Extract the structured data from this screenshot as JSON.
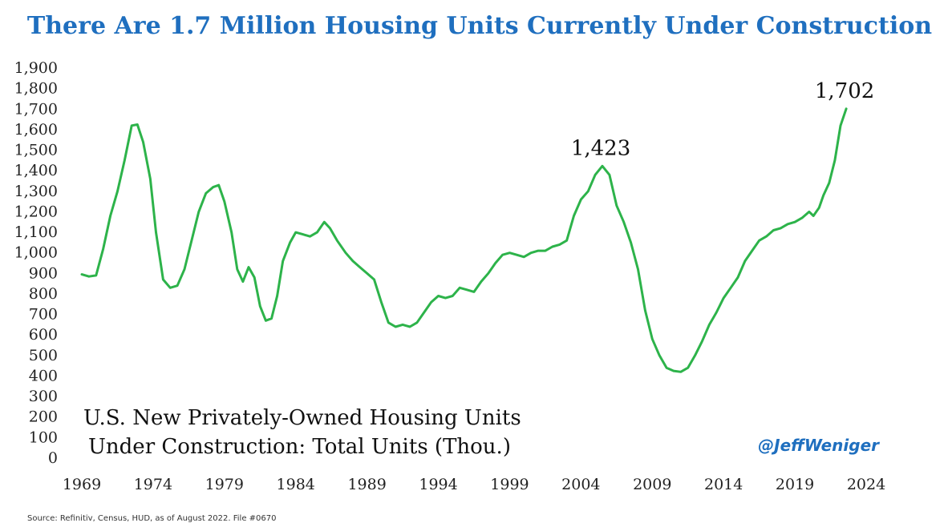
{
  "chart_data": {
    "type": "line",
    "title": "There Are 1.7 Million Housing Units Currently Under Construction",
    "inset_label_lines": [
      "U.S. New Privately-Owned Housing Units",
      "Under Construction: Total Units (Thou.)"
    ],
    "handle": "@JeffWeniger",
    "source": "Source: Refinitiv, Census, HUD, as of August 2022. File #0670",
    "xlim": [
      1969,
      2024
    ],
    "ylim": [
      0,
      1900
    ],
    "x_ticks": [
      1969,
      1974,
      1979,
      1984,
      1989,
      1994,
      1999,
      2004,
      2009,
      2014,
      2019,
      2024
    ],
    "x_tick_labels": [
      "1969",
      "1974",
      "1979",
      "1984",
      "1989",
      "1994",
      "1999",
      "2004",
      "2009",
      "2014",
      "2019",
      "2024"
    ],
    "y_ticks": [
      0,
      100,
      200,
      300,
      400,
      500,
      600,
      700,
      800,
      900,
      1000,
      1100,
      1200,
      1300,
      1400,
      1500,
      1600,
      1700,
      1800,
      1900
    ],
    "y_tick_labels": [
      "0",
      "100",
      "200",
      "300",
      "400",
      "500",
      "600",
      "700",
      "800",
      "900",
      "1,000",
      "1,100",
      "1,200",
      "1,300",
      "1,400",
      "1,500",
      "1,600",
      "1,700",
      "1,800",
      "1,900"
    ],
    "series": [
      {
        "name": "Housing Units Under Construction",
        "color": "#2db34a",
        "points": [
          [
            1969.0,
            895
          ],
          [
            1969.5,
            885
          ],
          [
            1970.0,
            890
          ],
          [
            1970.5,
            1020
          ],
          [
            1971.0,
            1180
          ],
          [
            1971.5,
            1300
          ],
          [
            1972.0,
            1450
          ],
          [
            1972.5,
            1620
          ],
          [
            1972.9,
            1625
          ],
          [
            1973.3,
            1540
          ],
          [
            1973.8,
            1360
          ],
          [
            1974.2,
            1100
          ],
          [
            1974.7,
            870
          ],
          [
            1975.2,
            830
          ],
          [
            1975.7,
            840
          ],
          [
            1976.2,
            920
          ],
          [
            1976.7,
            1060
          ],
          [
            1977.2,
            1200
          ],
          [
            1977.7,
            1290
          ],
          [
            1978.2,
            1320
          ],
          [
            1978.6,
            1330
          ],
          [
            1979.0,
            1250
          ],
          [
            1979.5,
            1100
          ],
          [
            1979.9,
            920
          ],
          [
            1980.3,
            860
          ],
          [
            1980.7,
            930
          ],
          [
            1981.1,
            880
          ],
          [
            1981.5,
            740
          ],
          [
            1981.9,
            670
          ],
          [
            1982.3,
            680
          ],
          [
            1982.7,
            790
          ],
          [
            1983.1,
            960
          ],
          [
            1983.6,
            1050
          ],
          [
            1984.0,
            1100
          ],
          [
            1984.5,
            1090
          ],
          [
            1985.0,
            1080
          ],
          [
            1985.5,
            1100
          ],
          [
            1986.0,
            1150
          ],
          [
            1986.4,
            1120
          ],
          [
            1986.9,
            1060
          ],
          [
            1987.5,
            1000
          ],
          [
            1988.0,
            960
          ],
          [
            1988.5,
            930
          ],
          [
            1989.0,
            900
          ],
          [
            1989.5,
            870
          ],
          [
            1990.0,
            760
          ],
          [
            1990.5,
            660
          ],
          [
            1991.0,
            640
          ],
          [
            1991.5,
            650
          ],
          [
            1992.0,
            640
          ],
          [
            1992.5,
            660
          ],
          [
            1993.0,
            710
          ],
          [
            1993.5,
            760
          ],
          [
            1994.0,
            790
          ],
          [
            1994.5,
            780
          ],
          [
            1995.0,
            790
          ],
          [
            1995.5,
            830
          ],
          [
            1996.0,
            820
          ],
          [
            1996.5,
            810
          ],
          [
            1997.0,
            860
          ],
          [
            1997.5,
            900
          ],
          [
            1998.0,
            950
          ],
          [
            1998.5,
            990
          ],
          [
            1999.0,
            1000
          ],
          [
            1999.5,
            990
          ],
          [
            2000.0,
            980
          ],
          [
            2000.5,
            1000
          ],
          [
            2001.0,
            1010
          ],
          [
            2001.5,
            1010
          ],
          [
            2002.0,
            1030
          ],
          [
            2002.5,
            1040
          ],
          [
            2003.0,
            1060
          ],
          [
            2003.5,
            1180
          ],
          [
            2004.0,
            1260
          ],
          [
            2004.5,
            1300
          ],
          [
            2005.0,
            1380
          ],
          [
            2005.5,
            1423
          ],
          [
            2006.0,
            1380
          ],
          [
            2006.5,
            1230
          ],
          [
            2007.0,
            1150
          ],
          [
            2007.5,
            1050
          ],
          [
            2008.0,
            920
          ],
          [
            2008.5,
            720
          ],
          [
            2009.0,
            580
          ],
          [
            2009.5,
            500
          ],
          [
            2010.0,
            440
          ],
          [
            2010.5,
            425
          ],
          [
            2011.0,
            420
          ],
          [
            2011.5,
            440
          ],
          [
            2012.0,
            500
          ],
          [
            2012.5,
            570
          ],
          [
            2013.0,
            650
          ],
          [
            2013.5,
            710
          ],
          [
            2014.0,
            780
          ],
          [
            2014.5,
            830
          ],
          [
            2015.0,
            880
          ],
          [
            2015.5,
            960
          ],
          [
            2016.0,
            1010
          ],
          [
            2016.5,
            1060
          ],
          [
            2017.0,
            1080
          ],
          [
            2017.5,
            1110
          ],
          [
            2018.0,
            1120
          ],
          [
            2018.5,
            1140
          ],
          [
            2019.0,
            1150
          ],
          [
            2019.5,
            1170
          ],
          [
            2020.0,
            1200
          ],
          [
            2020.3,
            1180
          ],
          [
            2020.7,
            1220
          ],
          [
            2021.0,
            1280
          ],
          [
            2021.4,
            1340
          ],
          [
            2021.8,
            1450
          ],
          [
            2022.2,
            1620
          ],
          [
            2022.6,
            1702
          ]
        ]
      }
    ],
    "annotations": [
      {
        "x": 2005.5,
        "y": 1423,
        "text": "1,423"
      },
      {
        "x": 2022.6,
        "y": 1702,
        "text": "1,702"
      }
    ]
  }
}
